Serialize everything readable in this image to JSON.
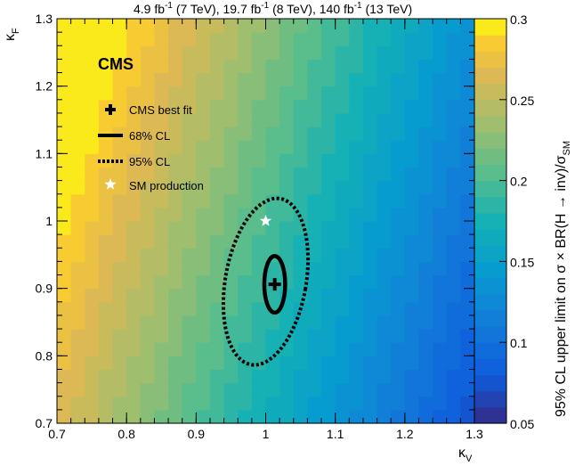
{
  "chart_data": {
    "type": "heatmap",
    "title_parts": [
      "4.9 fb",
      "-1",
      " (7 TeV), 19.7 fb",
      "-1",
      " (8 TeV), 140 fb",
      "-1",
      " (13 TeV)"
    ],
    "xlabel": "κ",
    "xlabel_sub": "V",
    "ylabel": "κ",
    "ylabel_sub": "F",
    "xlim": [
      0.7,
      1.3
    ],
    "ylim": [
      0.7,
      1.3
    ],
    "x_ticks": [
      "0.7",
      "0.8",
      "0.9",
      "1",
      "1.1",
      "1.2",
      "1.3"
    ],
    "y_ticks": [
      "0.7",
      "0.8",
      "0.9",
      "1",
      "1.1",
      "1.2",
      "1.3"
    ],
    "colorbar": {
      "range": [
        0.05,
        0.3
      ],
      "ticks": [
        "0.05",
        "0.1",
        "0.15",
        "0.2",
        "0.25",
        "0.3"
      ],
      "label": "95% CL upper limit on σ × BR(H → inv)/σ",
      "label_sub": "SM"
    },
    "experiment_label": "CMS",
    "best_fit": {
      "kv": 1.013,
      "kf": 0.906
    },
    "sm_point": {
      "kv": 1.0,
      "kf": 1.0
    },
    "contour_68": {
      "kv_center": 1.013,
      "kf_center": 0.906,
      "kv_half": 0.015,
      "kf_half": 0.042
    },
    "contour_95": {
      "kv_center": 1.0,
      "kf_center": 0.91,
      "kv_half": 0.058,
      "kf_half": 0.125,
      "tilt_deg": 10
    },
    "legend": [
      {
        "marker": "cross",
        "label": "CMS best fit"
      },
      {
        "marker": "solid-line",
        "label": "68% CL"
      },
      {
        "marker": "dotted-line",
        "label": "95% CL"
      },
      {
        "marker": "star",
        "label": "SM production"
      }
    ],
    "grid": false
  }
}
